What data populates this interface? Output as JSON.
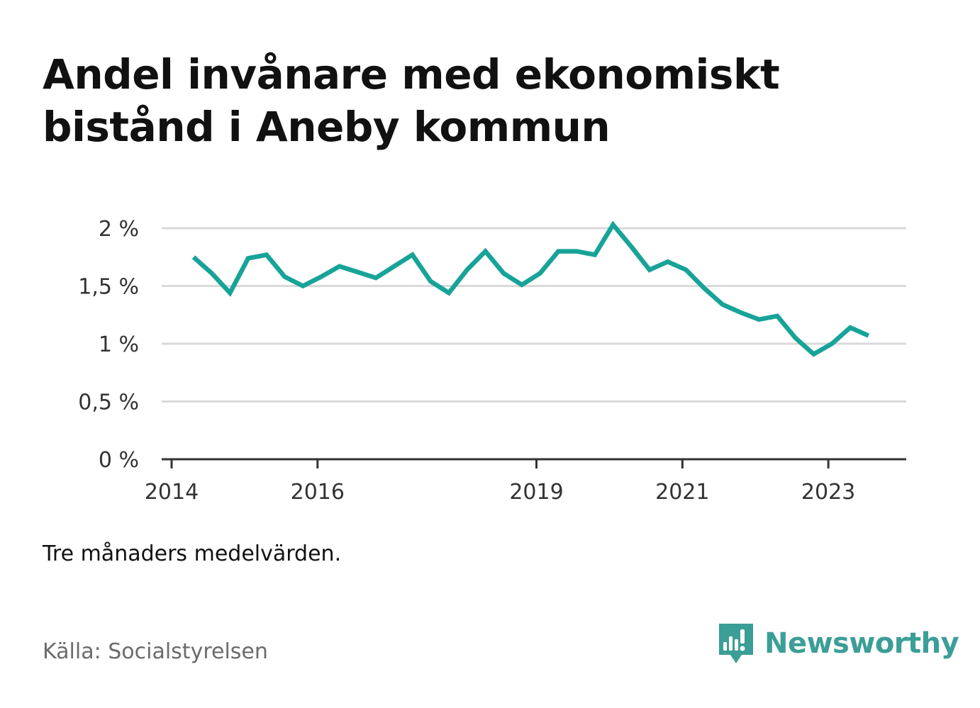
{
  "title": "Andel invånare med ekonomiskt bistånd i Aneby kommun",
  "note": "Tre månaders medelvärden.",
  "source": "Källa: Socialstyrelsen",
  "brand": {
    "name": "Newsworthy",
    "icon": "newsworthy-logo-icon",
    "color": "#3b9e97"
  },
  "colors": {
    "line": "#17a398",
    "grid": "#d9d9d9",
    "axis": "#333333"
  },
  "chart_data": {
    "type": "line",
    "ylim": [
      0,
      2
    ],
    "y_ticks": [
      {
        "value": 0,
        "label": "0 %"
      },
      {
        "value": 0.5,
        "label": "0,5 %"
      },
      {
        "value": 1,
        "label": "1 %"
      },
      {
        "value": 1.5,
        "label": "1,5 %"
      },
      {
        "value": 2,
        "label": "2 %"
      }
    ],
    "x_ticks": [
      {
        "value": 2014,
        "label": "2014"
      },
      {
        "value": 2016,
        "label": "2016"
      },
      {
        "value": 2019,
        "label": "2019"
      },
      {
        "value": 2021,
        "label": "2021"
      },
      {
        "value": 2023,
        "label": "2023"
      }
    ],
    "grid": true,
    "series": [
      {
        "x": [
          2014.3,
          2014.55,
          2014.8,
          2015.05,
          2015.3,
          2015.55,
          2015.8,
          2016.05,
          2016.3,
          2016.55,
          2016.8,
          2017.05,
          2017.3,
          2017.55,
          2017.8,
          2018.05,
          2018.3,
          2018.55,
          2018.8,
          2019.05,
          2019.3,
          2019.55,
          2019.8,
          2020.05,
          2020.3,
          2020.55,
          2020.8,
          2021.05,
          2021.3,
          2021.55,
          2021.8,
          2022.05,
          2022.3,
          2022.55,
          2022.8,
          2023.05,
          2023.3,
          2023.55
        ],
        "y": [
          1.75,
          1.61,
          1.44,
          1.74,
          1.77,
          1.58,
          1.5,
          1.58,
          1.67,
          1.62,
          1.57,
          1.67,
          1.77,
          1.54,
          1.44,
          1.64,
          1.8,
          1.61,
          1.51,
          1.61,
          1.8,
          1.8,
          1.77,
          2.03,
          1.84,
          1.64,
          1.71,
          1.64,
          1.48,
          1.34,
          1.27,
          1.21,
          1.24,
          1.05,
          0.91,
          1.0,
          1.14,
          1.07
        ]
      }
    ]
  }
}
